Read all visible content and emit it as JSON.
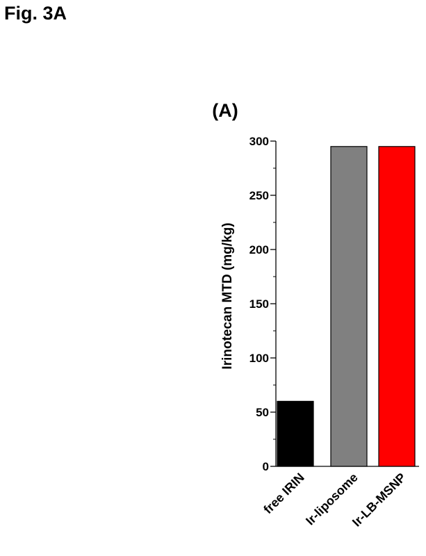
{
  "figure_label": "Fig. 3A",
  "chart_data": {
    "type": "bar",
    "title": "(A)",
    "ylabel": "Irinotecan MTD (mg/kg)",
    "xlabel": "",
    "categories": [
      "free IRIN",
      "Ir-liposome",
      "Ir-LB-MSNP"
    ],
    "values": [
      60,
      295,
      295
    ],
    "colors": [
      "#000000",
      "#808080",
      "#ff0000"
    ],
    "ylim": [
      0,
      300
    ],
    "yticks": [
      0,
      50,
      100,
      150,
      200,
      250,
      300
    ],
    "yticks_minor_step": 25,
    "grid": false,
    "legend": "none"
  }
}
